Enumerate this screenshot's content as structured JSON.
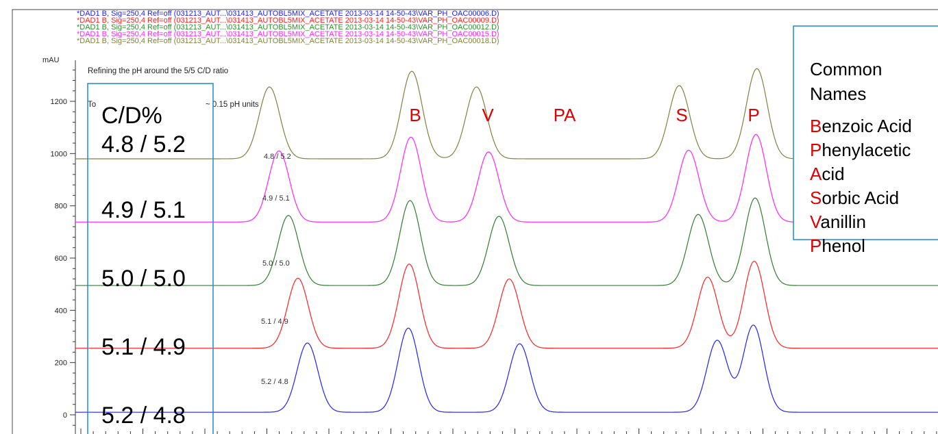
{
  "header_lines": [
    {
      "text": "*DAD1 B, Sig=250,4 Ref=off (031213_AUT...\\031413_AUTOBL5MIX_ACETATE 2013-03-14 14-50-43\\VAR_PH_OAC00006.D)",
      "color": "#2020ff"
    },
    {
      "text": "*DAD1 B, Sig=250,4 Ref=off (031213_AUT...\\031413_AUTOBL5MIX_ACETATE 2013-03-14 14-50-43\\VAR_PH_OAC00009.D)",
      "color": "#ff2020"
    },
    {
      "text": "*DAD1 B, Sig=250,4 Ref=off (031213_AUT...\\031413_AUTOBL5MIX_ACETATE 2013-03-14 14-50-43\\VAR_PH_OAC00012.D)",
      "color": "#2e8b2e"
    },
    {
      "text": "*DAD1 B, Sig=250,4 Ref=off (031213_AUT...\\031413_AUTOBL5MIX_ACETATE 2013-03-14 14-50-43\\VAR_PH_OAC00015.D)",
      "color": "#ff22ff"
    },
    {
      "text": "*DAD1 B, Sig=250,4 Ref=off (031213_AUT...\\031413_AUTOBL5MIX_ACETATE 2013-03-14 14-50-43\\VAR_PH_OAC00018.D)",
      "color": "#808040"
    }
  ],
  "chart_data": {
    "type": "line",
    "ylabel": "mAU",
    "ylim": [
      -40,
      1340
    ],
    "y_ticks": [
      0,
      200,
      400,
      600,
      800,
      1000,
      1200
    ],
    "x_unlabeled": true,
    "annotation_1": "Refining the pH around the 5/5 C/D ratio",
    "annotation_2_prefix": "To",
    "annotation_2_suffix": "~ 0.15 pH units",
    "peak_labels": [
      {
        "text": "B",
        "x": 0.293
      },
      {
        "text": "V",
        "x": 0.385
      },
      {
        "text": "PA",
        "x": 0.475
      },
      {
        "text": "S",
        "x": 0.665
      },
      {
        "text": "P",
        "x": 0.755
      }
    ],
    "series": [
      {
        "name": "4.8 / 5.2",
        "color": "#808040",
        "baseline": 980,
        "peaks": [
          {
            "pos": 0.225,
            "height": 275,
            "width": 0.012
          },
          {
            "pos": 0.39,
            "height": 335,
            "width": 0.012
          },
          {
            "pos": 0.465,
            "height": 275,
            "width": 0.012
          },
          {
            "pos": 0.7,
            "height": 280,
            "width": 0.012
          },
          {
            "pos": 0.79,
            "height": 345,
            "width": 0.012
          }
        ]
      },
      {
        "name": "4.9 / 5.1",
        "color": "#ff22ff",
        "baseline": 738,
        "peaks": [
          {
            "pos": 0.236,
            "height": 272,
            "width": 0.012
          },
          {
            "pos": 0.389,
            "height": 325,
            "width": 0.012
          },
          {
            "pos": 0.479,
            "height": 268,
            "width": 0.012
          },
          {
            "pos": 0.711,
            "height": 275,
            "width": 0.012
          },
          {
            "pos": 0.789,
            "height": 335,
            "width": 0.012
          }
        ]
      },
      {
        "name": "5.0 / 5.0",
        "color": "#2e7d2e",
        "baseline": 495,
        "peaks": [
          {
            "pos": 0.247,
            "height": 268,
            "width": 0.012
          },
          {
            "pos": 0.388,
            "height": 325,
            "width": 0.012
          },
          {
            "pos": 0.491,
            "height": 265,
            "width": 0.012
          },
          {
            "pos": 0.722,
            "height": 272,
            "width": 0.012
          },
          {
            "pos": 0.788,
            "height": 335,
            "width": 0.012
          }
        ]
      },
      {
        "name": "5.1 / 4.9",
        "color": "#ff2020",
        "baseline": 255,
        "peaks": [
          {
            "pos": 0.258,
            "height": 268,
            "width": 0.012
          },
          {
            "pos": 0.387,
            "height": 322,
            "width": 0.012
          },
          {
            "pos": 0.503,
            "height": 265,
            "width": 0.012
          },
          {
            "pos": 0.733,
            "height": 272,
            "width": 0.012
          },
          {
            "pos": 0.787,
            "height": 333,
            "width": 0.012
          }
        ]
      },
      {
        "name": "5.2 / 4.8",
        "color": "#2020ff",
        "baseline": 10,
        "peaks": [
          {
            "pos": 0.269,
            "height": 265,
            "width": 0.012
          },
          {
            "pos": 0.386,
            "height": 322,
            "width": 0.012
          },
          {
            "pos": 0.515,
            "height": 262,
            "width": 0.012
          },
          {
            "pos": 0.744,
            "height": 275,
            "width": 0.012
          },
          {
            "pos": 0.786,
            "height": 333,
            "width": 0.012
          }
        ]
      }
    ]
  },
  "cd_box": {
    "header": "C/D%",
    "rows": [
      "4.8 / 5.2",
      "4.9 / 5.1",
      "5.0 / 5.0",
      "5.1 / 4.9",
      "5.2 / 4.8"
    ],
    "border_color": "#1a8ad4"
  },
  "names_box": {
    "title_lines": [
      "Common",
      "Names"
    ],
    "items": [
      {
        "first": "B",
        "rest": "enzoic Acid"
      },
      {
        "first": "P",
        "rest": "henylacetic"
      },
      {
        "first": "A",
        "rest": "cid"
      },
      {
        "first": "S",
        "rest": "orbic Acid"
      },
      {
        "first": "V",
        "rest": "anillin"
      },
      {
        "first": "P",
        "rest": "henol"
      }
    ],
    "accent_color": "#e00000",
    "border_color": "#1a8ad4"
  }
}
